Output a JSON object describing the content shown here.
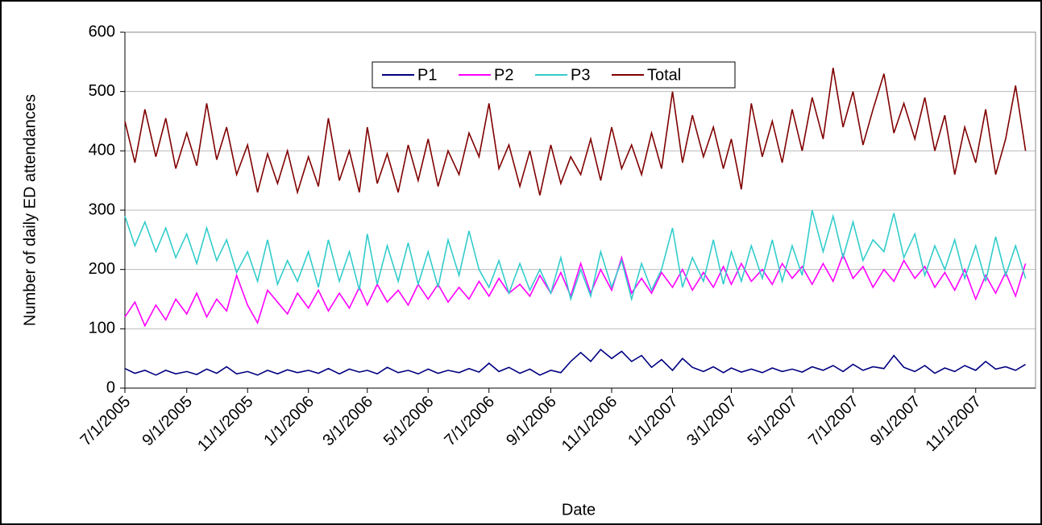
{
  "chart_data": {
    "type": "line",
    "x_label": "Date",
    "y_label": "Number of daily ED attendances",
    "x": [
      "7/1/2005",
      "7/11/2005",
      "7/21/2005",
      "8/1/2005",
      "8/11/2005",
      "8/21/2005",
      "9/1/2005",
      "9/11/2005",
      "9/21/2005",
      "10/1/2005",
      "10/11/2005",
      "10/21/2005",
      "11/1/2005",
      "11/11/2005",
      "11/21/2005",
      "12/1/2005",
      "12/11/2005",
      "12/21/2005",
      "1/1/2006",
      "1/11/2006",
      "1/21/2006",
      "2/1/2006",
      "2/11/2006",
      "2/21/2006",
      "3/1/2006",
      "3/11/2006",
      "3/21/2006",
      "4/1/2006",
      "4/11/2006",
      "4/21/2006",
      "5/1/2006",
      "5/11/2006",
      "5/21/2006",
      "6/1/2006",
      "6/11/2006",
      "6/21/2006",
      "7/1/2006",
      "7/11/2006",
      "7/21/2006",
      "8/1/2006",
      "8/11/2006",
      "8/21/2006",
      "9/1/2006",
      "9/11/2006",
      "9/21/2006",
      "10/1/2006",
      "10/11/2006",
      "10/21/2006",
      "11/1/2006",
      "11/11/2006",
      "11/21/2006",
      "12/1/2006",
      "12/11/2006",
      "12/21/2006",
      "1/1/2007",
      "1/11/2007",
      "1/21/2007",
      "2/1/2007",
      "2/11/2007",
      "2/21/2007",
      "3/1/2007",
      "3/11/2007",
      "3/21/2007",
      "4/1/2007",
      "4/11/2007",
      "4/21/2007",
      "5/1/2007",
      "5/11/2007",
      "5/21/2007",
      "6/1/2007",
      "6/11/2007",
      "6/21/2007",
      "7/1/2007",
      "7/11/2007",
      "7/21/2007",
      "8/1/2007",
      "8/11/2007",
      "8/21/2007",
      "9/1/2007",
      "9/11/2007",
      "9/21/2007",
      "10/1/2007",
      "10/11/2007",
      "10/21/2007",
      "11/1/2007",
      "11/11/2007",
      "11/21/2007",
      "12/1/2007",
      "12/11/2007",
      "12/21/2007"
    ],
    "xlim": [
      "7/1/2005",
      "12/31/2007"
    ],
    "xticks": [
      "7/1/2005",
      "9/1/2005",
      "11/1/2005",
      "1/1/2006",
      "3/1/2006",
      "5/1/2006",
      "7/1/2006",
      "9/1/2006",
      "11/1/2006",
      "1/1/2007",
      "3/1/2007",
      "5/1/2007",
      "7/1/2007",
      "9/1/2007",
      "11/1/2007"
    ],
    "ylim": [
      0,
      600
    ],
    "yticks": [
      0,
      100,
      200,
      300,
      400,
      500,
      600
    ],
    "grid": true,
    "legend": "top",
    "series": [
      {
        "name": "P1",
        "color": "#000080",
        "values": [
          33,
          25,
          30,
          22,
          30,
          24,
          28,
          23,
          32,
          25,
          36,
          24,
          28,
          22,
          30,
          24,
          31,
          26,
          30,
          25,
          33,
          24,
          32,
          27,
          30,
          24,
          35,
          26,
          30,
          24,
          32,
          25,
          30,
          26,
          33,
          27,
          42,
          28,
          35,
          25,
          32,
          22,
          30,
          26,
          45,
          60,
          45,
          65,
          50,
          62,
          45,
          55,
          35,
          48,
          30,
          50,
          35,
          28,
          36,
          26,
          34,
          27,
          32,
          26,
          34,
          28,
          32,
          27,
          36,
          30,
          38,
          28,
          40,
          30,
          36,
          33,
          55,
          35,
          28,
          38,
          25,
          34,
          28,
          38,
          30,
          45,
          32,
          36,
          30,
          40
        ]
      },
      {
        "name": "P2",
        "color": "#ff00ff",
        "values": [
          120,
          145,
          105,
          140,
          115,
          150,
          125,
          160,
          120,
          150,
          130,
          190,
          140,
          110,
          165,
          145,
          125,
          160,
          135,
          165,
          130,
          160,
          135,
          170,
          140,
          175,
          145,
          165,
          140,
          175,
          150,
          175,
          145,
          170,
          150,
          180,
          155,
          185,
          160,
          175,
          155,
          190,
          160,
          195,
          155,
          210,
          160,
          200,
          165,
          220,
          160,
          185,
          160,
          195,
          170,
          200,
          165,
          195,
          170,
          205,
          175,
          210,
          180,
          200,
          175,
          210,
          185,
          205,
          175,
          210,
          180,
          225,
          185,
          205,
          170,
          200,
          180,
          215,
          185,
          205,
          170,
          195,
          165,
          200,
          150,
          190,
          160,
          195,
          155,
          210
        ]
      },
      {
        "name": "P3",
        "color": "#33cccc",
        "values": [
          290,
          240,
          280,
          230,
          270,
          220,
          260,
          210,
          270,
          215,
          250,
          195,
          230,
          180,
          250,
          175,
          215,
          180,
          230,
          170,
          250,
          180,
          230,
          165,
          260,
          175,
          240,
          180,
          245,
          175,
          230,
          170,
          250,
          190,
          265,
          200,
          170,
          215,
          160,
          210,
          165,
          200,
          160,
          220,
          150,
          200,
          155,
          230,
          170,
          215,
          150,
          210,
          165,
          200,
          270,
          170,
          220,
          180,
          250,
          175,
          230,
          180,
          240,
          185,
          250,
          180,
          240,
          190,
          300,
          230,
          290,
          220,
          280,
          215,
          250,
          230,
          295,
          220,
          260,
          190,
          240,
          200,
          250,
          185,
          240,
          180,
          255,
          190,
          240,
          185
        ]
      },
      {
        "name": "Total",
        "color": "#800000",
        "values": [
          450,
          380,
          470,
          390,
          455,
          370,
          430,
          375,
          480,
          385,
          440,
          360,
          410,
          330,
          395,
          345,
          400,
          330,
          390,
          340,
          455,
          350,
          400,
          330,
          440,
          345,
          395,
          330,
          410,
          350,
          420,
          340,
          400,
          360,
          430,
          390,
          480,
          370,
          410,
          340,
          400,
          325,
          410,
          345,
          390,
          360,
          420,
          350,
          440,
          370,
          410,
          360,
          430,
          370,
          500,
          380,
          460,
          390,
          440,
          370,
          420,
          335,
          480,
          390,
          450,
          380,
          470,
          400,
          490,
          420,
          540,
          440,
          500,
          410,
          470,
          530,
          430,
          480,
          420,
          490,
          400,
          460,
          360,
          440,
          380,
          470,
          360,
          420,
          510,
          400
        ]
      }
    ]
  }
}
